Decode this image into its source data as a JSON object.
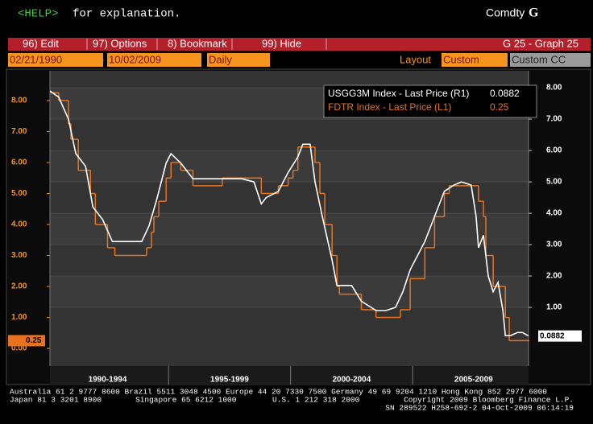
{
  "header": {
    "help_key": "<HELP>",
    "help_text": "for explanation.",
    "market": "Comdty",
    "market_key": "G"
  },
  "toolbar": {
    "items": [
      "96) Edit",
      "97) Options",
      "8) Bookmark",
      "99) Hide"
    ],
    "screen": "G 25 - Graph 25"
  },
  "controls": {
    "start_date": "02/21/1990",
    "separator": "-",
    "end_date": "10/02/2009",
    "period": "Daily",
    "layout_label": "Layout",
    "layout": "Custom",
    "layout_name": "Custom CC"
  },
  "chart_data": {
    "type": "line",
    "grid": true,
    "legend": "top-right",
    "xlim": [
      1990.14,
      2009.75
    ],
    "xticks": [
      {
        "value": 1992.5,
        "label": "1990-1994"
      },
      {
        "value": 1997.5,
        "label": "1995-1999"
      },
      {
        "value": 2002.5,
        "label": "2000-2004"
      },
      {
        "value": 2007.5,
        "label": "2005-2009"
      }
    ],
    "ylim": [
      -0.57,
      8.96
    ],
    "yticks": [
      {
        "value": 0,
        "label": "0.00"
      },
      {
        "value": 1,
        "label": "1.00"
      },
      {
        "value": 2,
        "label": "2.00"
      },
      {
        "value": 3,
        "label": "3.00"
      },
      {
        "value": 4,
        "label": "4.00"
      },
      {
        "value": 5,
        "label": "5.00"
      },
      {
        "value": 6,
        "label": "6.00"
      },
      {
        "value": 7,
        "label": "7.00"
      },
      {
        "value": 8,
        "label": "8.00"
      }
    ],
    "y2lim": [
      -0.87,
      8.54
    ],
    "y2ticks": [
      {
        "value": 1,
        "label": "1.00"
      },
      {
        "value": 2,
        "label": "2.00"
      },
      {
        "value": 3,
        "label": "3.00"
      },
      {
        "value": 4,
        "label": "4.00"
      },
      {
        "value": 5,
        "label": "5.00"
      },
      {
        "value": 6,
        "label": "6.00"
      },
      {
        "value": 7,
        "label": "7.00"
      },
      {
        "value": 8,
        "label": "8.00"
      }
    ],
    "series": [
      {
        "name": "USGG3M Index - Last Price (R1)",
        "color": "#ffffff",
        "axis": "y2",
        "x": [
          1990.14,
          1990.5,
          1990.9,
          1991.2,
          1991.6,
          1991.9,
          1992.3,
          1992.7,
          1993.0,
          1993.5,
          1993.9,
          1994.2,
          1994.5,
          1994.9,
          1995.1,
          1995.5,
          1996.0,
          1996.5,
          1997.0,
          1997.5,
          1998.0,
          1998.5,
          1998.8,
          1999.0,
          1999.5,
          1999.9,
          2000.3,
          2000.5,
          2000.8,
          2001.0,
          2001.3,
          2001.7,
          2001.9,
          2002.5,
          2002.9,
          2003.5,
          2003.9,
          2004.3,
          2004.6,
          2004.9,
          2005.5,
          2005.9,
          2006.3,
          2006.7,
          2007.0,
          2007.4,
          2007.6,
          2007.7,
          2007.9,
          2008.1,
          2008.3,
          2008.5,
          2008.7,
          2008.8,
          2009.0,
          2009.3,
          2009.5,
          2009.75
        ],
        "values": [
          7.9,
          7.7,
          7.0,
          5.9,
          5.5,
          4.2,
          3.8,
          3.1,
          3.1,
          3.1,
          3.1,
          3.6,
          4.4,
          5.6,
          5.9,
          5.6,
          5.1,
          5.1,
          5.1,
          5.1,
          5.1,
          5.0,
          4.3,
          4.5,
          4.7,
          5.3,
          5.8,
          6.2,
          6.2,
          5.0,
          3.9,
          2.5,
          1.7,
          1.7,
          1.2,
          0.9,
          0.9,
          1.0,
          1.5,
          2.2,
          3.1,
          3.9,
          4.7,
          4.9,
          5.0,
          4.9,
          3.9,
          2.9,
          3.3,
          2.0,
          1.5,
          1.8,
          0.9,
          0.1,
          0.1,
          0.2,
          0.2,
          0.0882
        ]
      },
      {
        "name": "FDTR Index - Last Price (L1)",
        "color": "#e8731e",
        "axis": "y",
        "step": true,
        "x": [
          1990.14,
          1990.5,
          1990.9,
          1991.0,
          1991.3,
          1991.8,
          1992.0,
          1992.5,
          1992.8,
          1994.1,
          1994.3,
          1994.4,
          1994.6,
          1994.9,
          1995.1,
          1995.5,
          1996.0,
          1997.2,
          1998.8,
          1999.5,
          1999.9,
          2000.1,
          2000.3,
          2001.0,
          2001.2,
          2001.4,
          2001.7,
          2001.9,
          2002.0,
          2002.9,
          2003.5,
          2004.5,
          2004.9,
          2005.5,
          2005.9,
          2006.3,
          2006.5,
          2007.7,
          2007.9,
          2008.0,
          2008.3,
          2008.8,
          2008.96,
          2009.75
        ],
        "values": [
          8.25,
          8.0,
          7.25,
          6.75,
          5.75,
          5.0,
          4.0,
          3.25,
          3.0,
          3.25,
          3.75,
          4.25,
          4.75,
          5.5,
          6.0,
          5.75,
          5.25,
          5.5,
          5.0,
          5.25,
          5.5,
          5.75,
          6.5,
          6.0,
          5.0,
          4.0,
          3.0,
          2.0,
          1.75,
          1.25,
          1.0,
          1.25,
          2.25,
          3.25,
          4.25,
          5.0,
          5.25,
          4.75,
          4.25,
          3.0,
          2.0,
          1.0,
          0.25,
          0.25
        ]
      }
    ]
  },
  "footer": {
    "phones": "Australia 61 2 9777 8600 Brazil 5511 3048 4500 Europe 44 20 7330 7500 Germany 49 69 9204 1210 Hong Kong 852 2977 6000",
    "japan": "Japan 81 3 3201 8900",
    "singapore": "Singapore 65 6212 1000",
    "us": "U.S. 1 212 318 2000",
    "copyright": "Copyright 2009 Bloomberg Finance L.P.",
    "serial": "SN 289522 H258-692-2 04-Oct-2009 06:14:19"
  }
}
